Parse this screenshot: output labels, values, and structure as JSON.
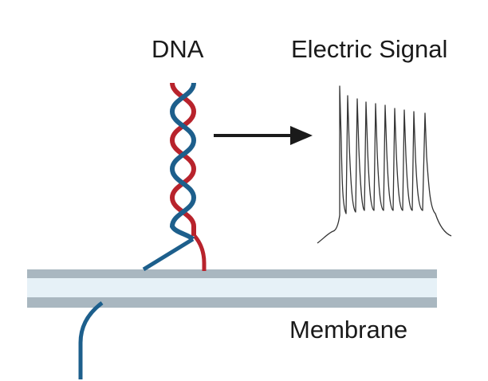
{
  "labels": {
    "dna": "DNA",
    "electric_signal": "Electric Signal",
    "membrane": "Membrane"
  },
  "colors": {
    "dna_strand_red": "#b8232c",
    "dna_strand_blue": "#1d5f8c",
    "membrane_outer": "#a9b7c0",
    "membrane_inner": "#e6f1f7",
    "arrow": "#1a1a1a",
    "signal_trace": "#333333"
  },
  "icons": {
    "arrow": "right-arrow-icon"
  }
}
